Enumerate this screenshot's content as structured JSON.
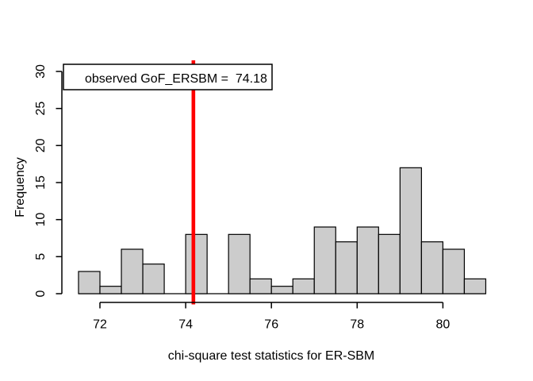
{
  "figure": {
    "background": "#ffffff"
  },
  "chart_data": {
    "type": "bar",
    "subtype": "histogram",
    "title": "",
    "xlabel": "chi-square test statistics for ER-SBM",
    "ylabel": "Frequency",
    "bin_edges": [
      71.5,
      72.0,
      72.5,
      73.0,
      73.5,
      74.0,
      74.5,
      75.0,
      75.5,
      76.0,
      76.5,
      77.0,
      77.5,
      78.0,
      78.5,
      79.0,
      79.5,
      80.0,
      80.5,
      81.0
    ],
    "counts": [
      3,
      1,
      6,
      4,
      0,
      8,
      0,
      8,
      2,
      1,
      2,
      9,
      7,
      9,
      8,
      17,
      7,
      6,
      2
    ],
    "x_ticks": [
      72,
      74,
      76,
      78,
      80
    ],
    "y_ticks": [
      0,
      5,
      10,
      15,
      20,
      25,
      30
    ],
    "xlim": [
      71.5,
      81
    ],
    "ylim": [
      0,
      30
    ],
    "grid": false,
    "legend_position": "topleft",
    "marker_line": {
      "value": 74.18,
      "color": "#ff0000",
      "label": "observed GoF_ERSBM =  74.18"
    },
    "colors": {
      "bar_fill": "#cccccc",
      "bar_border": "#000000",
      "axis": "#000000",
      "text": "#000000",
      "legend_bg": "#ffffff",
      "legend_border": "#000000",
      "marker": "#ff0000"
    }
  }
}
